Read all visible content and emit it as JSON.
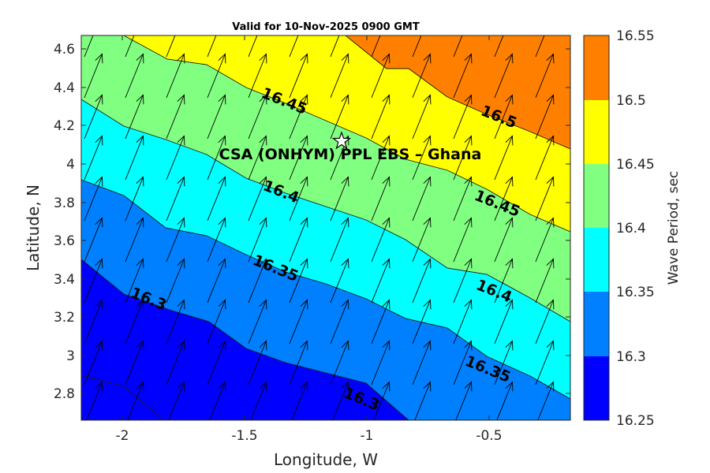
{
  "title": "Valid for 10-Nov-2025 0900 GMT",
  "xlabel": "Longitude, W",
  "ylabel": "Latitude, N",
  "site_label": "CSA (ONHYM) PPL EBS  – Ghana",
  "site_marker": "star-icon",
  "site_location": {
    "lon": -1.1,
    "lat": 4.1
  },
  "x_ticks": [
    "-2",
    "-1.5",
    "-1",
    "-0.5"
  ],
  "y_ticks": [
    "2.8",
    "3",
    "3.2",
    "3.4",
    "3.6",
    "3.8",
    "4",
    "4.2",
    "4.4",
    "4.6"
  ],
  "colorbar": {
    "label": "Wave Period, sec",
    "levels": [
      "16.25",
      "16.3",
      "16.35",
      "16.4",
      "16.45",
      "16.5",
      "16.55"
    ],
    "colors": [
      "#0000ff",
      "#0080ff",
      "#00ffff",
      "#80ff80",
      "#ffff00",
      "#ff8000"
    ]
  },
  "contour_labels": [
    "16.3",
    "16.3",
    "16.35",
    "16.35",
    "16.4",
    "16.4",
    "16.45",
    "16.45",
    "16.5"
  ],
  "chart_data": {
    "type": "heatmap",
    "title": "Valid for 10-Nov-2025 0900 GMT",
    "xlabel": "Longitude, W",
    "ylabel": "Latitude, N",
    "xlim": [
      -2.17,
      -0.17
    ],
    "ylim": [
      2.67,
      4.67
    ],
    "colorbar_label": "Wave Period, sec",
    "levels": [
      16.25,
      16.3,
      16.35,
      16.4,
      16.45,
      16.5,
      16.55
    ],
    "contours": [
      {
        "level": 16.3,
        "line": [
          [
            -2.17,
            3.49
          ],
          [
            -2.0,
            3.31
          ],
          [
            -1.8,
            3.22
          ],
          [
            -1.65,
            3.16
          ],
          [
            -1.5,
            3.02
          ],
          [
            -1.33,
            2.95
          ],
          [
            -1.0,
            2.84
          ],
          [
            -0.85,
            2.67
          ]
        ]
      },
      {
        "level": 16.35,
        "line": [
          [
            -2.17,
            3.92
          ],
          [
            -2.0,
            3.84
          ],
          [
            -1.83,
            3.67
          ],
          [
            -1.67,
            3.63
          ],
          [
            -1.5,
            3.53
          ],
          [
            -1.33,
            3.44
          ],
          [
            -1.17,
            3.38
          ],
          [
            -1.0,
            3.3
          ],
          [
            -0.83,
            3.2
          ],
          [
            -0.67,
            3.15
          ],
          [
            -0.5,
            3.0
          ],
          [
            -0.33,
            2.9
          ],
          [
            -0.17,
            2.78
          ]
        ]
      },
      {
        "level": 16.4,
        "line": [
          [
            -2.17,
            4.34
          ],
          [
            -2.0,
            4.2
          ],
          [
            -1.83,
            4.13
          ],
          [
            -1.67,
            4.05
          ],
          [
            -1.5,
            3.92
          ],
          [
            -1.33,
            3.84
          ],
          [
            -1.17,
            3.77
          ],
          [
            -1.0,
            3.7
          ],
          [
            -0.83,
            3.6
          ],
          [
            -0.67,
            3.45
          ],
          [
            -0.5,
            3.42
          ],
          [
            -0.33,
            3.3
          ],
          [
            -0.17,
            3.17
          ]
        ]
      },
      {
        "level": 16.45,
        "line": [
          [
            -2.0,
            4.6
          ],
          [
            -1.83,
            4.48
          ],
          [
            -1.67,
            4.45
          ],
          [
            -1.5,
            4.33
          ],
          [
            -1.33,
            4.25
          ],
          [
            -1.17,
            4.16
          ],
          [
            -1.0,
            4.07
          ],
          [
            -0.83,
            3.96
          ],
          [
            -0.67,
            3.9
          ],
          [
            -0.5,
            3.8
          ],
          [
            -0.33,
            3.67
          ],
          [
            -0.17,
            3.58
          ]
        ]
      },
      {
        "level": 16.5,
        "line": [
          [
            -1.13,
            4.67
          ],
          [
            -0.98,
            4.56
          ],
          [
            -0.83,
            4.56
          ],
          [
            -0.67,
            4.4
          ],
          [
            -0.5,
            4.32
          ],
          [
            -0.33,
            4.23
          ],
          [
            -0.17,
            4.08
          ]
        ]
      }
    ],
    "arrows": {
      "direction_deg_from_north": 22,
      "description": "wave direction vectors, uniform toward NNE"
    },
    "site": {
      "name": "CSA (ONHYM) PPL EBS  – Ghana",
      "lon": -1.1,
      "lat": 4.1
    }
  }
}
